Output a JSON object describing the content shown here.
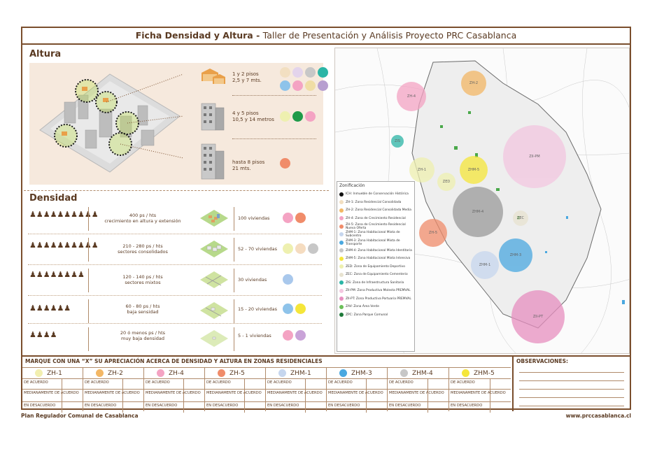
{
  "title": {
    "bold": "Ficha Densidad y Altura - ",
    "rest": "Taller de Presentación y Análisis Proyecto PRC Casablanca"
  },
  "altura": {
    "heading": "Altura",
    "rows": [
      {
        "text1": "1 y 2 pisos",
        "text2": "2,5 y 7 mts.",
        "swatches": [
          "#f2dfc1",
          "#e3d4ec",
          "#c7c7c7",
          "#2bb5a6",
          "#8ec3ea",
          "#f4a3c3",
          "#f0dda5",
          "#b79fd0"
        ]
      },
      {
        "text1": "4 y 5 pisos",
        "text2": "10,5 y 14 metros",
        "swatches": [
          "#eef0b0",
          "#1f9a4a",
          "#f4a3c3"
        ]
      },
      {
        "text1": "hasta 8 pisos",
        "text2": "21 mts.",
        "swatches": [
          "#f08c6a"
        ]
      }
    ]
  },
  "densidad": {
    "heading": "Densidad",
    "rows": [
      {
        "people": 10,
        "text1": "400 ps / hts",
        "text2": "crecimiento en altura y extensión",
        "viv": "100 viviendas",
        "swatches": [
          "#f4a3c3",
          "#f08c6a"
        ]
      },
      {
        "people": 10,
        "text1": "210 - 280 ps / hts",
        "text2": "sectores consolidados",
        "viv": "52 - 70 viviendas",
        "swatches": [
          "#eef0b0",
          "#f5dcc0",
          "#c7c7c7"
        ]
      },
      {
        "people": 8,
        "text1": "120 - 140 ps / hts",
        "text2": "sectores mixtos",
        "viv": "30 viviendas",
        "swatches": [
          "#a9c8ec"
        ]
      },
      {
        "people": 6,
        "text1": "60 - 80 ps / hts",
        "text2": "baja sensidad",
        "viv": "15 - 20 viviendas",
        "swatches": [
          "#8ec3ea",
          "#f5e63a"
        ]
      },
      {
        "people": 4,
        "text1": "20 ó menos ps / hts",
        "text2": "muy baja densidad",
        "viv": "5 - 1 viviendas",
        "swatches": [
          "#f4a3c3",
          "#c9a3d8"
        ]
      }
    ]
  },
  "map": {
    "legend_title": "Zonificación",
    "legend": [
      {
        "color": "#111111",
        "label": "ICH: Inmueble de Conservación Histórica"
      },
      {
        "color": "#f2dfc1",
        "label": "ZH-1: Zona Residencial Consolidada"
      },
      {
        "color": "#f3b765",
        "label": "ZH-2: Zona Residencial Consolidada Media"
      },
      {
        "color": "#f4a3c3",
        "label": "ZH-4: Zona de Crecimiento Residencial"
      },
      {
        "color": "#f08c6a",
        "label": "ZH-5: Zona de Crecimiento Residencial Nueva Oferta"
      },
      {
        "color": "#c6d6ee",
        "label": "ZHM-1: Zona Habitacional Mixta de Subcentro"
      },
      {
        "color": "#4aa8e0",
        "label": "ZHM-3: Zona Habitacional Mixta de Transporte"
      },
      {
        "color": "#c7c7c7",
        "label": "ZHM-4: Zona Habitacional Mixta Identitaria"
      },
      {
        "color": "#f5e63a",
        "label": "ZHM-5: Zona Habitacional Mixta Intensiva"
      },
      {
        "color": "#eef0b0",
        "label": "ZED: Zona de Equipamiento Deportivo"
      },
      {
        "color": "#e8e3d0",
        "label": "ZEC: Zona de Equipamiento Cementerio"
      },
      {
        "color": "#2bb5a6",
        "label": "ZIS: Zona de Infraestructura Sanitaria"
      },
      {
        "color": "#f3c7e0",
        "label": "ZII-PM: Zona Productiva Molesta PREMVAL"
      },
      {
        "color": "#e78fc0",
        "label": "ZII-PT: Zona Productiva Portuaria PREMVAL"
      },
      {
        "color": "#6bbf59",
        "label": "ZAV: Zona Área Verde"
      },
      {
        "color": "#1f7a3a",
        "label": "ZPC: Zona Parque Comunal"
      }
    ],
    "zones": [
      {
        "label": "ZH-4",
        "color": "#f4a3c3"
      },
      {
        "label": "ZH-2",
        "color": "#f3b765"
      },
      {
        "label": "ZIS",
        "color": "#2bb5a6"
      },
      {
        "label": "ZH-1",
        "color": "#f2dfc1"
      },
      {
        "label": "ZED",
        "color": "#eef0b0"
      },
      {
        "label": "ZHM-5",
        "color": "#f5e63a"
      },
      {
        "label": "ZII-PM",
        "color": "#f3c7e0"
      },
      {
        "label": "ZHM-4",
        "color": "#9a9a9a"
      },
      {
        "label": "ZEC",
        "color": "#e8e3d0"
      },
      {
        "label": "ZH-5",
        "color": "#f08c6a"
      },
      {
        "label": "ZHM-3",
        "color": "#4aa8e0"
      },
      {
        "label": "ZHM-1",
        "color": "#c6d6ee"
      },
      {
        "label": "ZII-PT",
        "color": "#e78fc0"
      }
    ]
  },
  "survey": {
    "title": "MARQUE CON UNA “X” SU APRECIACIÓN ACERCA DE DENSIDAD Y ALTURA EN ZONAS RESIDENCIALES",
    "columns": [
      {
        "label": "ZH-1",
        "color": "#f2efb0"
      },
      {
        "label": "ZH-2",
        "color": "#f3b765"
      },
      {
        "label": "ZH-4",
        "color": "#f4a3c3"
      },
      {
        "label": "ZH-5",
        "color": "#f08c6a"
      },
      {
        "label": "ZHM-1",
        "color": "#c6d6ee"
      },
      {
        "label": "ZHM-3",
        "color": "#4aa8e0"
      },
      {
        "label": "ZHM-4",
        "color": "#c7c7c7"
      },
      {
        "label": "ZHM-5",
        "color": "#f5e63a"
      }
    ],
    "options": [
      "DE ACUERDO",
      "MEDIANAMENTE DE ACUERDO",
      "EN DESACUERDO"
    ],
    "obs_title": "OBSERVACIONES:"
  },
  "footer": {
    "left": "Plan Regulador Comunal de Casablanca",
    "right": "www.prccasablanca.cl"
  }
}
